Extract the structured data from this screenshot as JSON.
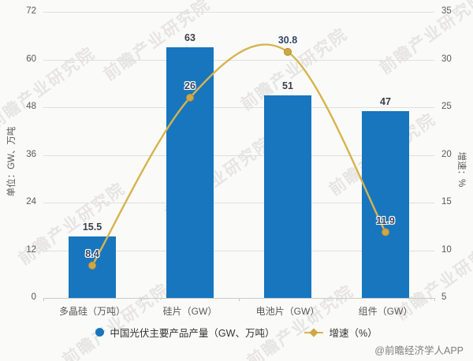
{
  "chart_data": {
    "type": "bar",
    "combo": "bar+line",
    "categories": [
      "多晶硅（万吨）",
      "硅片（GW）",
      "电池片（GW）",
      "组件（GW）"
    ],
    "series": [
      {
        "name": "中国光伏主要产品产量（GW、万吨）",
        "type": "bar",
        "axis": "left",
        "values": [
          15.5,
          63,
          51,
          47
        ]
      },
      {
        "name": "增速（%）",
        "type": "line",
        "axis": "right",
        "values": [
          8.4,
          26,
          30.8,
          11.9
        ]
      }
    ],
    "left_axis": {
      "title": "单位：GW、万吨",
      "min": 0,
      "max": 72,
      "ticks": [
        72,
        60,
        48,
        36,
        24,
        12,
        0
      ]
    },
    "right_axis": {
      "title": "增速：%",
      "min": 5,
      "max": 35,
      "ticks": [
        35,
        30,
        25,
        20,
        15,
        10,
        5
      ]
    },
    "grid": true,
    "legend_position": "bottom",
    "title": ""
  },
  "watermark": {
    "text": "前瞻产业研究院"
  },
  "credit": "@前瞻经济学人APP",
  "colors": {
    "bar": "#1776BE",
    "line": "#D6B44E",
    "marker_fill": "#CFA845",
    "marker_stroke": "#B29038",
    "grid": "#DFDFDC",
    "axis_line": "#CBCBC8",
    "axis_text": "#595959",
    "bar_label": "#3A3F4A",
    "line_label": "#2F4461",
    "legend_text": "#333333",
    "credit_text": "#808080",
    "background": "#FAFAF8"
  }
}
